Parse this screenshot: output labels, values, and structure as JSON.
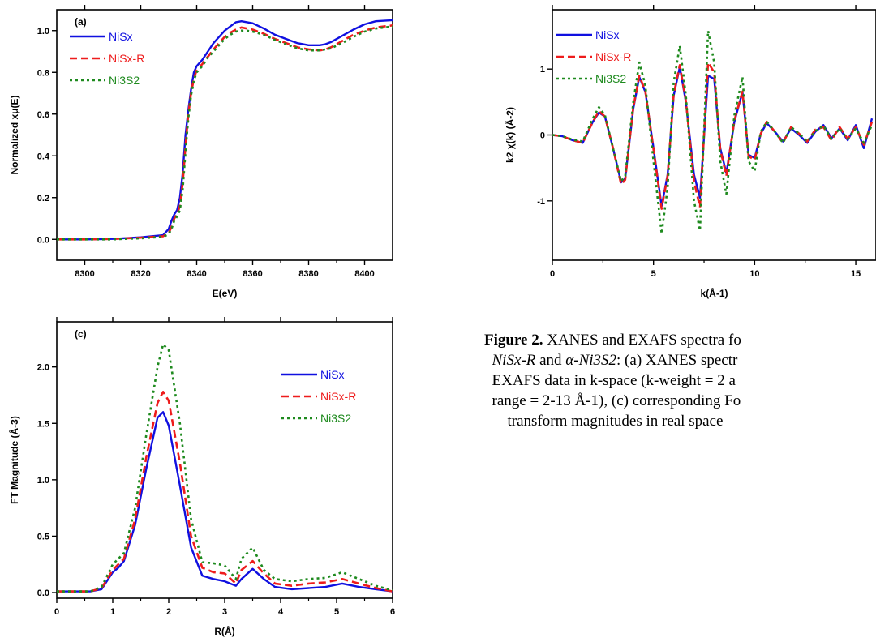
{
  "caption": {
    "fig_label": "Figure 2.",
    "line1_text": "XANES and EXAFS spectra fo",
    "line2_chem": "NiSx-R",
    "line2_conn": "and",
    "line2_chem2": "α-Ni3S2",
    "line2_text": ": (a) XANES spectr",
    "line3_text": "EXAFS data in k-space (k-weight = 2 a",
    "line4_text": "range = 2-13 Å-1), (c) corresponding Fo",
    "line5_text": "transform magnitudes in real space"
  },
  "colors": {
    "NiSx": "#1010e0",
    "NiSx-R": "#ee1c1c",
    "Ni3S2": "#1e8a1e"
  },
  "chart_data": [
    {
      "panel": "(a)",
      "type": "line",
      "xlabel": "E(eV)",
      "ylabel": "Normalized xμ(E)",
      "xlim": [
        8290,
        8410
      ],
      "ylim": [
        -0.1,
        1.1
      ],
      "xticks": [
        8300,
        8320,
        8340,
        8360,
        8380,
        8400
      ],
      "yticks": [
        0.0,
        0.2,
        0.4,
        0.6,
        0.8,
        1.0
      ],
      "legend": "top-left",
      "series": [
        {
          "name": "NiSx",
          "style": "solid",
          "x": [
            8290,
            8300,
            8310,
            8320,
            8328,
            8330,
            8331,
            8332,
            8333,
            8334,
            8335,
            8336,
            8337,
            8338,
            8339,
            8340,
            8341,
            8342,
            8343,
            8344,
            8346,
            8348,
            8350,
            8352,
            8354,
            8356,
            8358,
            8360,
            8364,
            8368,
            8372,
            8376,
            8380,
            8384,
            8386,
            8388,
            8392,
            8396,
            8400,
            8404,
            8410
          ],
          "y": [
            0,
            0,
            0.002,
            0.01,
            0.02,
            0.05,
            0.09,
            0.12,
            0.14,
            0.2,
            0.32,
            0.5,
            0.62,
            0.72,
            0.8,
            0.83,
            0.845,
            0.86,
            0.88,
            0.9,
            0.94,
            0.97,
            1.0,
            1.02,
            1.04,
            1.045,
            1.04,
            1.035,
            1.01,
            0.98,
            0.96,
            0.94,
            0.93,
            0.93,
            0.935,
            0.945,
            0.975,
            1.005,
            1.03,
            1.045,
            1.05
          ]
        },
        {
          "name": "NiSx-R",
          "style": "dashed",
          "x": [
            8290,
            8300,
            8310,
            8320,
            8328,
            8330,
            8331,
            8332,
            8333,
            8334,
            8335,
            8336,
            8337,
            8338,
            8339,
            8340,
            8341,
            8342,
            8343,
            8344,
            8346,
            8348,
            8350,
            8352,
            8354,
            8356,
            8358,
            8360,
            8364,
            8368,
            8372,
            8376,
            8380,
            8384,
            8386,
            8388,
            8392,
            8396,
            8400,
            8404,
            8410
          ],
          "y": [
            0,
            0,
            0.002,
            0.008,
            0.015,
            0.03,
            0.06,
            0.1,
            0.12,
            0.16,
            0.27,
            0.45,
            0.6,
            0.7,
            0.77,
            0.81,
            0.825,
            0.84,
            0.86,
            0.875,
            0.91,
            0.94,
            0.97,
            0.99,
            1.005,
            1.015,
            1.01,
            1.005,
            0.985,
            0.96,
            0.94,
            0.92,
            0.91,
            0.905,
            0.91,
            0.92,
            0.95,
            0.98,
            1.0,
            1.015,
            1.025
          ]
        },
        {
          "name": "Ni3S2",
          "style": "dotted",
          "x": [
            8290,
            8300,
            8310,
            8320,
            8328,
            8330,
            8331,
            8332,
            8333,
            8334,
            8335,
            8336,
            8337,
            8338,
            8339,
            8340,
            8341,
            8342,
            8343,
            8344,
            8346,
            8348,
            8350,
            8352,
            8354,
            8356,
            8358,
            8360,
            8364,
            8368,
            8372,
            8376,
            8380,
            8384,
            8386,
            8388,
            8392,
            8396,
            8400,
            8404,
            8410
          ],
          "y": [
            0,
            0,
            0,
            0.005,
            0.012,
            0.025,
            0.05,
            0.09,
            0.11,
            0.14,
            0.24,
            0.42,
            0.58,
            0.69,
            0.76,
            0.8,
            0.815,
            0.83,
            0.85,
            0.87,
            0.9,
            0.93,
            0.96,
            0.98,
            0.995,
            1.0,
            1.0,
            0.995,
            0.98,
            0.955,
            0.935,
            0.915,
            0.905,
            0.905,
            0.91,
            0.915,
            0.94,
            0.97,
            0.995,
            1.01,
            1.02
          ]
        }
      ]
    },
    {
      "panel": "",
      "type": "line",
      "xlabel": "k(Å-1)",
      "ylabel": "k2 χ(k) (Å-2)",
      "xlim": [
        0,
        16
      ],
      "ylim": [
        -1.9,
        1.9
      ],
      "xticks": [
        0,
        5,
        10,
        15
      ],
      "yticks": [
        -1,
        0,
        1
      ],
      "legend": "top-left",
      "series": [
        {
          "name": "NiSx",
          "style": "solid",
          "x": [
            0,
            0.5,
            1,
            1.5,
            2,
            2.3,
            2.6,
            3,
            3.4,
            3.6,
            4,
            4.3,
            4.6,
            5,
            5.4,
            5.7,
            6,
            6.3,
            6.6,
            7,
            7.3,
            7.7,
            8,
            8.3,
            8.6,
            9,
            9.4,
            9.7,
            10,
            10.3,
            10.6,
            11,
            11.4,
            11.8,
            12.2,
            12.6,
            13,
            13.4,
            13.8,
            14.2,
            14.6,
            15,
            15.4,
            15.8
          ],
          "y": [
            0,
            -0.02,
            -0.08,
            -0.12,
            0.2,
            0.34,
            0.28,
            -0.2,
            -0.72,
            -0.66,
            0.4,
            0.88,
            0.65,
            -0.2,
            -1.08,
            -0.6,
            0.6,
            1.03,
            0.5,
            -0.6,
            -0.95,
            0.9,
            0.85,
            -0.2,
            -0.58,
            0.2,
            0.65,
            -0.3,
            -0.35,
            0.02,
            0.18,
            0.05,
            -0.1,
            0.1,
            0.0,
            -0.12,
            0.05,
            0.15,
            -0.05,
            0.1,
            -0.08,
            0.15,
            -0.2,
            0.25
          ]
        },
        {
          "name": "NiSx-R",
          "style": "dashed",
          "x": [
            0,
            0.5,
            1,
            1.5,
            2,
            2.3,
            2.6,
            3,
            3.4,
            3.6,
            4,
            4.3,
            4.6,
            5,
            5.4,
            5.7,
            6,
            6.3,
            6.6,
            7,
            7.3,
            7.7,
            8,
            8.3,
            8.6,
            9,
            9.4,
            9.7,
            10,
            10.3,
            10.6,
            11,
            11.4,
            11.8,
            12.2,
            12.6,
            13,
            13.4,
            13.8,
            14.2,
            14.6,
            15,
            15.4,
            15.8
          ],
          "y": [
            0,
            -0.02,
            -0.08,
            -0.12,
            0.2,
            0.36,
            0.28,
            -0.2,
            -0.75,
            -0.68,
            0.42,
            0.9,
            0.66,
            -0.22,
            -1.12,
            -0.62,
            0.62,
            1.06,
            0.52,
            -0.7,
            -1.1,
            1.1,
            0.95,
            -0.22,
            -0.62,
            0.22,
            0.66,
            -0.32,
            -0.38,
            0.02,
            0.2,
            0.05,
            -0.12,
            0.12,
            0.02,
            -0.1,
            0.08,
            0.12,
            -0.08,
            0.12,
            -0.06,
            0.12,
            -0.15,
            0.2
          ]
        },
        {
          "name": "Ni3S2",
          "style": "dotted",
          "x": [
            0,
            0.5,
            1,
            1.5,
            2,
            2.3,
            2.6,
            3,
            3.4,
            3.6,
            4,
            4.3,
            4.6,
            5,
            5.4,
            5.7,
            6,
            6.3,
            6.6,
            7,
            7.3,
            7.7,
            8,
            8.3,
            8.6,
            9,
            9.4,
            9.7,
            10,
            10.3,
            10.6,
            11,
            11.4,
            11.8,
            12.2,
            12.6,
            13,
            13.4,
            13.8,
            14.2,
            14.6,
            15,
            15.4,
            15.8
          ],
          "y": [
            0,
            -0.02,
            -0.07,
            -0.1,
            0.25,
            0.42,
            0.3,
            -0.2,
            -0.7,
            -0.62,
            0.5,
            1.1,
            0.75,
            -0.4,
            -1.5,
            -0.8,
            0.8,
            1.35,
            0.6,
            -1.0,
            -1.45,
            1.58,
            1.1,
            -0.4,
            -0.9,
            0.3,
            0.88,
            -0.4,
            -0.55,
            0.05,
            0.2,
            0.05,
            -0.12,
            0.12,
            0.02,
            -0.1,
            0.06,
            0.14,
            -0.06,
            0.1,
            -0.06,
            0.1,
            -0.12,
            0.15
          ]
        }
      ]
    },
    {
      "panel": "(c)",
      "type": "line",
      "xlabel": "R(Å)",
      "ylabel": "FT Magnitude (Å-3)",
      "xlim": [
        0,
        6
      ],
      "ylim": [
        -0.05,
        2.4
      ],
      "xticks": [
        0,
        1,
        2,
        3,
        4,
        5,
        6
      ],
      "yticks": [
        0.0,
        0.5,
        1.0,
        1.5,
        2.0
      ],
      "legend": "top-right",
      "series": [
        {
          "name": "NiSx",
          "style": "solid",
          "x": [
            0,
            0.3,
            0.6,
            0.8,
            1.0,
            1.1,
            1.2,
            1.4,
            1.6,
            1.8,
            1.9,
            2.0,
            2.2,
            2.4,
            2.6,
            2.8,
            3.0,
            3.2,
            3.3,
            3.5,
            3.7,
            3.9,
            4.2,
            4.5,
            4.8,
            5.1,
            5.4,
            5.7,
            6.0
          ],
          "y": [
            0.01,
            0.01,
            0.01,
            0.03,
            0.18,
            0.22,
            0.28,
            0.6,
            1.1,
            1.55,
            1.6,
            1.48,
            0.95,
            0.4,
            0.15,
            0.12,
            0.1,
            0.06,
            0.12,
            0.21,
            0.12,
            0.05,
            0.03,
            0.04,
            0.05,
            0.08,
            0.05,
            0.03,
            0.01
          ]
        },
        {
          "name": "NiSx-R",
          "style": "dashed",
          "x": [
            0,
            0.3,
            0.6,
            0.8,
            1.0,
            1.1,
            1.2,
            1.4,
            1.6,
            1.8,
            1.9,
            2.0,
            2.2,
            2.4,
            2.6,
            2.8,
            3.0,
            3.2,
            3.3,
            3.5,
            3.7,
            3.9,
            4.2,
            4.5,
            4.8,
            5.1,
            5.4,
            5.7,
            6.0
          ],
          "y": [
            0.01,
            0.01,
            0.01,
            0.04,
            0.2,
            0.25,
            0.3,
            0.65,
            1.2,
            1.68,
            1.78,
            1.7,
            1.15,
            0.5,
            0.22,
            0.18,
            0.17,
            0.08,
            0.2,
            0.28,
            0.17,
            0.08,
            0.06,
            0.08,
            0.09,
            0.12,
            0.08,
            0.04,
            0.01
          ]
        },
        {
          "name": "Ni3S2",
          "style": "dotted",
          "x": [
            0,
            0.3,
            0.6,
            0.8,
            1.0,
            1.1,
            1.2,
            1.4,
            1.6,
            1.8,
            1.9,
            2.0,
            2.2,
            2.4,
            2.6,
            2.8,
            3.0,
            3.2,
            3.3,
            3.5,
            3.7,
            3.9,
            4.2,
            4.5,
            4.8,
            5.1,
            5.4,
            5.7,
            6.0
          ],
          "y": [
            0.01,
            0.01,
            0.01,
            0.05,
            0.25,
            0.3,
            0.35,
            0.75,
            1.4,
            2.0,
            2.2,
            2.15,
            1.5,
            0.65,
            0.27,
            0.26,
            0.24,
            0.12,
            0.3,
            0.4,
            0.2,
            0.12,
            0.1,
            0.12,
            0.13,
            0.18,
            0.12,
            0.06,
            0.02
          ]
        }
      ]
    }
  ]
}
